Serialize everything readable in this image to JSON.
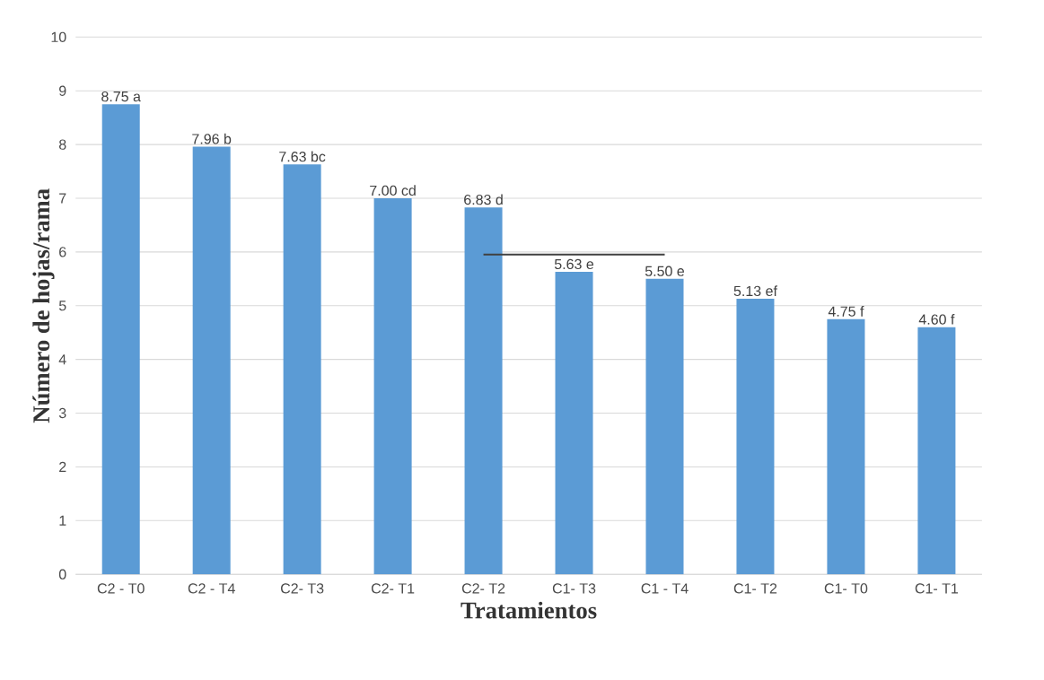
{
  "chart_data": {
    "type": "bar",
    "xlabel": "Tratamientos",
    "ylabel": "Número de hojas/rama",
    "categories": [
      "C2 - T0",
      "C2 - T4",
      "C2- T3",
      "C2- T1",
      "C2- T2",
      "C1- T3",
      "C1 - T4",
      "C1- T2",
      "C1- T0",
      "C1- T1"
    ],
    "series": [
      {
        "color": "#5b9bd5",
        "values": [
          8.75,
          7.96,
          7.63,
          7.0,
          6.83,
          5.63,
          5.5,
          5.13,
          4.75,
          4.6
        ],
        "value_labels": [
          "8.75 a",
          "7.96 b",
          "7.63 bc",
          "7.00 cd",
          "6.83 d",
          "5.63 e",
          "5.50 e",
          "5.13 ef",
          "4.75 f",
          "4.60 f"
        ]
      },
      {
        "type": "line",
        "color": "#404040",
        "values": [
          null,
          null,
          null,
          null,
          5.95,
          5.95,
          5.95,
          null,
          null,
          null
        ]
      }
    ],
    "ylim": [
      0,
      10
    ],
    "yticks": [
      0,
      1,
      2,
      3,
      4,
      5,
      6,
      7,
      8,
      9,
      10
    ],
    "grid": "y"
  }
}
